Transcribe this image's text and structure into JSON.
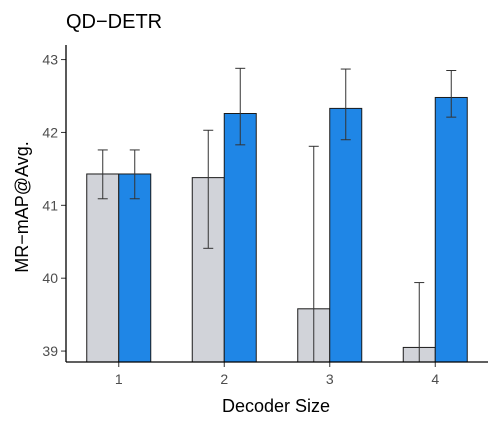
{
  "chart_data": {
    "type": "bar",
    "title": "QD−DETR",
    "xlabel": "Decoder Size",
    "ylabel": "MR−mAP@Avg.",
    "categories": [
      "1",
      "2",
      "3",
      "4"
    ],
    "ylim": [
      38.85,
      43.2
    ],
    "yticks": [
      "39",
      "40",
      "41",
      "42",
      "43"
    ],
    "grid": false,
    "legend": "none",
    "series": [
      {
        "color": "#d1d3d9",
        "values": [
          41.43,
          41.38,
          39.58,
          39.05
        ],
        "err_low": [
          41.09,
          40.41,
          38.85,
          38.85
        ],
        "err_high": [
          41.76,
          42.03,
          41.81,
          39.94
        ]
      },
      {
        "color": "#1f86e6",
        "values": [
          41.43,
          42.26,
          42.33,
          42.48
        ],
        "err_low": [
          41.09,
          41.83,
          41.9,
          42.21
        ],
        "err_high": [
          41.76,
          42.88,
          42.87,
          42.85
        ]
      }
    ]
  }
}
